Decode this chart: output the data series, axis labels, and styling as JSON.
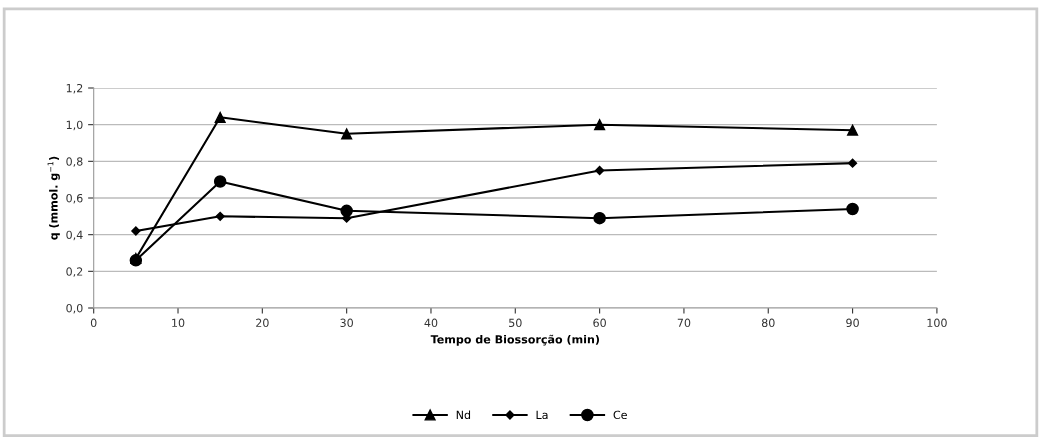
{
  "chart_data": {
    "type": "line",
    "xlabel": "Tempo de Biossorção (min)",
    "ylabel": "q (mmol. g$^{−1}$)",
    "x": [
      5,
      15,
      30,
      60,
      90
    ],
    "series": [
      {
        "name": "Nd",
        "color": "#000000",
        "marker": "triangle",
        "values": [
          0.27,
          1.04,
          0.95,
          1.0,
          0.97
        ]
      },
      {
        "name": "La",
        "color": "#000000",
        "marker": "diamond",
        "values": [
          0.42,
          0.5,
          0.49,
          0.75,
          0.79
        ]
      },
      {
        "name": "Ce",
        "color": "#000000",
        "marker": "circle",
        "values": [
          0.26,
          0.69,
          0.53,
          0.49,
          0.54
        ]
      }
    ],
    "xlim": [
      0,
      100
    ],
    "xticks": [
      0,
      10,
      20,
      30,
      40,
      50,
      60,
      70,
      80,
      90,
      100
    ],
    "ylim": [
      0,
      1.2
    ],
    "yticks": [
      {
        "value": 0,
        "label": "0,0"
      },
      {
        "value": 0.2,
        "label": "0,2"
      },
      {
        "value": 0.4,
        "label": "0,4"
      },
      {
        "value": 0.6,
        "label": "0,6"
      },
      {
        "value": 0.8,
        "label": "0,8"
      },
      {
        "value": 1.0,
        "label": "1,0"
      },
      {
        "value": 1.2,
        "label": "1,2"
      }
    ],
    "grid": "y",
    "legend": "bottom",
    "line_style": "solid"
  }
}
